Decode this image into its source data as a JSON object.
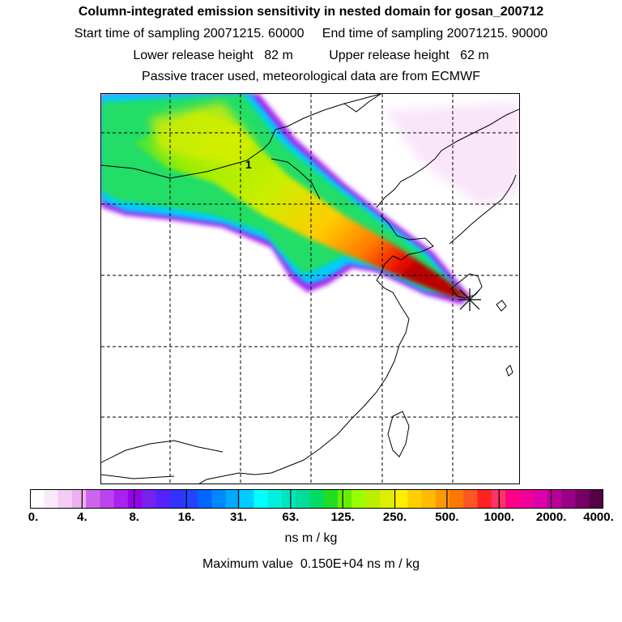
{
  "title": "Column-integrated emission sensitivity in nested domain for gosan_200712",
  "sampling_line": "Start time of sampling 20071215. 60000     End time of sampling 20071215. 90000",
  "release_line": "Lower release height   82 m          Upper release height   62 m",
  "tracer_line": "Passive tracer used, meteorological data are from ECMWF",
  "map": {
    "contour_label": "1",
    "marker": "release-site-star-icon"
  },
  "colorbar": {
    "colors": [
      "#ffffff",
      "#fbe8fb",
      "#f4ccf4",
      "#eeb0ee",
      "#cc66ee",
      "#bb44ee",
      "#aa22ee",
      "#9900ee",
      "#7722ee",
      "#5522ff",
      "#3333ff",
      "#2244ff",
      "#0066ff",
      "#0088ff",
      "#00aaff",
      "#00ccff",
      "#00ffff",
      "#00f0dd",
      "#00e6c0",
      "#00dd99",
      "#00dd66",
      "#22dd22",
      "#66ee00",
      "#99ff00",
      "#bbee00",
      "#ddee00",
      "#ffee00",
      "#ffd000",
      "#ffbb00",
      "#ff9900",
      "#ff7700",
      "#ff5522",
      "#ff2222",
      "#ff3366",
      "#ff0088",
      "#ee0099",
      "#dd00aa",
      "#bb0099",
      "#990088",
      "#770066",
      "#550044"
    ],
    "tick_labels": [
      "0.",
      "4.",
      "8.",
      "16.",
      "31.",
      "63.",
      "125.",
      "250.",
      "500.",
      "1000.",
      "2000.",
      "4000."
    ],
    "units": "ns m / kg"
  },
  "max_value_text": "Maximum value  0.150E+04 ns m / kg"
}
